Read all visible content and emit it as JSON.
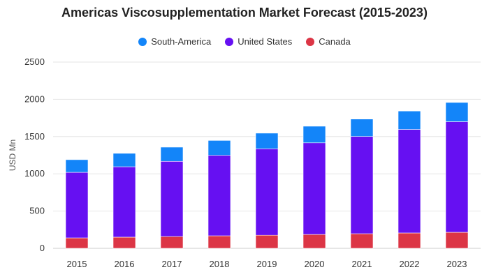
{
  "chart_data": {
    "type": "bar",
    "stacked": true,
    "title": "Americas Viscosupplementation Market Forecast (2015-2023)",
    "xlabel": "",
    "ylabel": "USD Mn",
    "ylim": [
      0,
      2500
    ],
    "yticks": [
      0,
      500,
      1000,
      1500,
      2000,
      2500
    ],
    "grid": true,
    "legend_position": "top",
    "categories": [
      "2015",
      "2016",
      "2017",
      "2018",
      "2019",
      "2020",
      "2021",
      "2022",
      "2023"
    ],
    "series": [
      {
        "name": "Canada",
        "color": "#dc3545",
        "values": [
          140,
          150,
          158,
          168,
          176,
          186,
          196,
          206,
          215
        ]
      },
      {
        "name": "United States",
        "color": "#6610f2",
        "values": [
          880,
          945,
          1010,
          1080,
          1160,
          1230,
          1305,
          1390,
          1485
        ]
      },
      {
        "name": "South-America",
        "color": "#1385f9",
        "values": [
          170,
          180,
          190,
          200,
          210,
          223,
          234,
          247,
          258
        ]
      }
    ],
    "legend_order": [
      "South-America",
      "United States",
      "Canada"
    ]
  }
}
